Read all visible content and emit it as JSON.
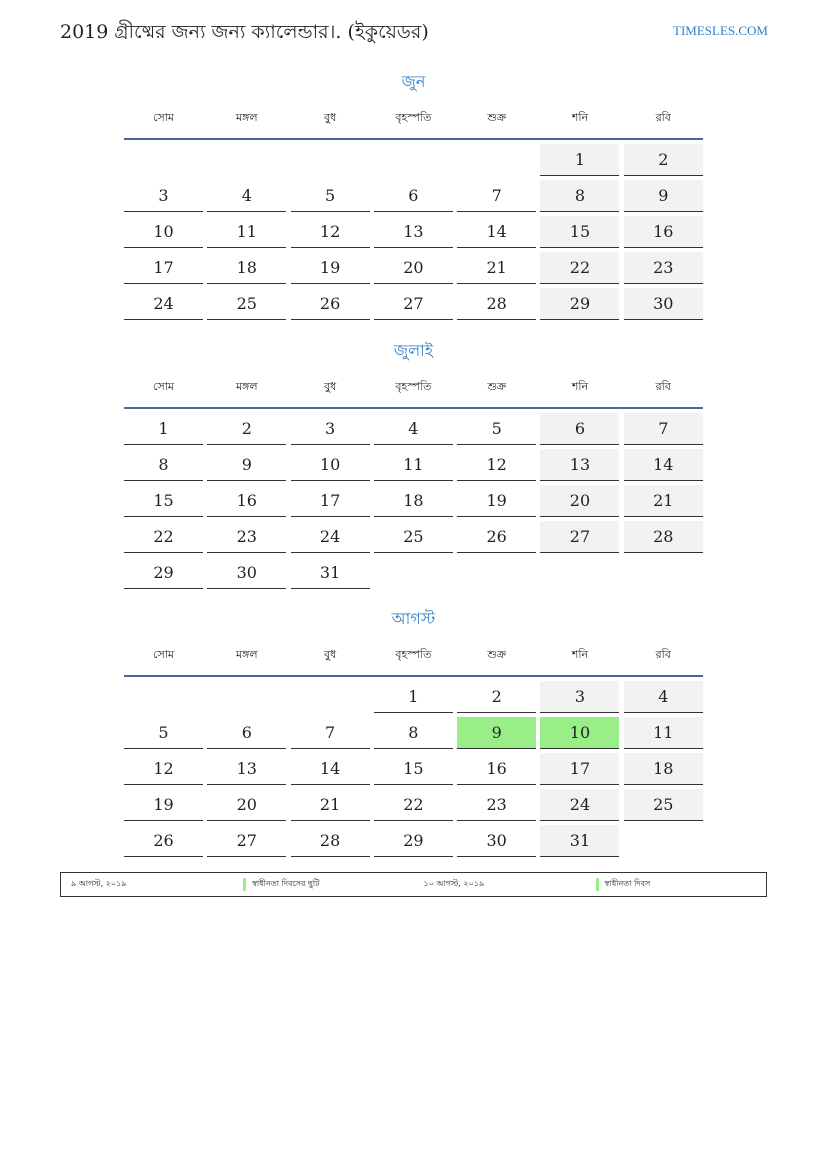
{
  "header": {
    "title": "2019 গ্রীষ্মের জন্য জন্য ক্যালেন্ডার।. (ইকুয়েডর)",
    "brand": "TIMESLES.COM"
  },
  "weekdays": [
    "সোম",
    "মঙ্গল",
    "বুধ",
    "বৃহস্পতি",
    "শুক্র",
    "শনি",
    "রবি"
  ],
  "colors": {
    "accent": "#2f7fc4",
    "weekend": "#f2f2f2",
    "holiday": "#99ee88",
    "rule": "#4b67a0"
  },
  "months": [
    {
      "name": "জুন",
      "weeks": [
        [
          null,
          null,
          null,
          null,
          null,
          1,
          2
        ],
        [
          3,
          4,
          5,
          6,
          7,
          8,
          9
        ],
        [
          10,
          11,
          12,
          13,
          14,
          15,
          16
        ],
        [
          17,
          18,
          19,
          20,
          21,
          22,
          23
        ],
        [
          24,
          25,
          26,
          27,
          28,
          29,
          30
        ]
      ],
      "holidays": []
    },
    {
      "name": "জুলাই",
      "weeks": [
        [
          1,
          2,
          3,
          4,
          5,
          6,
          7
        ],
        [
          8,
          9,
          10,
          11,
          12,
          13,
          14
        ],
        [
          15,
          16,
          17,
          18,
          19,
          20,
          21
        ],
        [
          22,
          23,
          24,
          25,
          26,
          27,
          28
        ],
        [
          29,
          30,
          31,
          null,
          null,
          null,
          null
        ]
      ],
      "holidays": []
    },
    {
      "name": "আগস্ট",
      "weeks": [
        [
          null,
          null,
          null,
          1,
          2,
          3,
          4
        ],
        [
          5,
          6,
          7,
          8,
          9,
          10,
          11
        ],
        [
          12,
          13,
          14,
          15,
          16,
          17,
          18
        ],
        [
          19,
          20,
          21,
          22,
          23,
          24,
          25
        ],
        [
          26,
          27,
          28,
          29,
          30,
          31,
          null
        ]
      ],
      "holidays": [
        9,
        10
      ]
    }
  ],
  "holiday_list": [
    {
      "date": "৯ আগস্ট, ২০১৯",
      "name": "স্বাধীনতা দিবসের ছুটি"
    },
    {
      "date": "১০ আগস্ট, ২০১৯",
      "name": "স্বাধীনতা দিবস"
    }
  ]
}
